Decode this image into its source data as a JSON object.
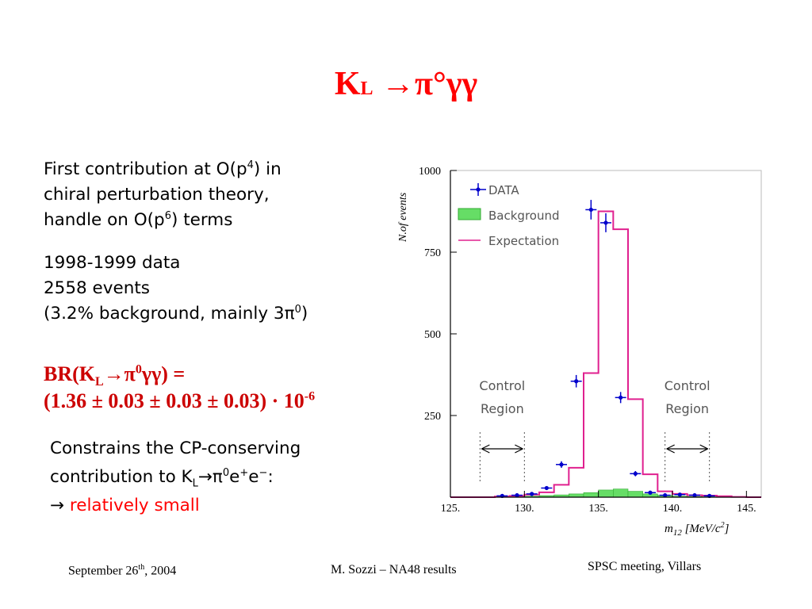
{
  "slide": {
    "title": {
      "main": "K",
      "sub": "L",
      "rest": " →π°γγ"
    },
    "bullets": {
      "b1": {
        "l1_pre": "First contribution at O(p",
        "l1_sup": "4",
        "l1_post": ") in",
        "l2": "chiral perturbation theory,",
        "l3_pre": "handle on O(p",
        "l3_sup": "6",
        "l3_post": ") terms"
      },
      "b2": {
        "l1": "1998-1999 data",
        "l2": "2558 events",
        "l3_pre": "(3.2% background, mainly 3π",
        "l3_sup": "0",
        "l3_post": ")"
      },
      "br": {
        "l1_a": "BR(K",
        "l1_sub": "L",
        "l1_b": "→π",
        "l1_sup": "0",
        "l1_c": "γγ) =",
        "l2_a": "(1.36 ± 0.03 ± 0.03 ± 0.03) · 10",
        "l2_sup": "-6"
      },
      "b3": {
        "l1": "Constrains the CP-conserving",
        "l2_a": "contribution to K",
        "l2_sub": "L",
        "l2_b": "→π",
        "l2_sup1": "0",
        "l2_c": "e",
        "l2_sup2": "+",
        "l2_d": "e",
        "l2_sup3": "−",
        "l2_e": ":",
        "l3_arrow": "→ ",
        "l3_red": "relatively small"
      }
    },
    "footer": {
      "date_a": "September 26",
      "date_sup": "th",
      "date_b": ", 2004",
      "author": "M. Sozzi – NA48 results",
      "meeting": "SPSC meeting, Villars"
    },
    "colors": {
      "title": "#ff0000",
      "br": "#cc0000",
      "data": "#0000cc",
      "expectation": "#e0208f",
      "background": "#66dd66"
    }
  },
  "chart_data": {
    "type": "histogram",
    "ylabel": "N.of events",
    "xlabel": "m",
    "xlabel_sub": "12",
    "xlabel_unit": "[MeV/c",
    "xlabel_unit_sup": "2",
    "xlabel_unit_end": "]",
    "xlim": [
      125,
      146
    ],
    "ylim": [
      0,
      1000
    ],
    "xticks": [
      125,
      130,
      135,
      140,
      145
    ],
    "xtick_labels": [
      "125.",
      "130.",
      "135.",
      "140.",
      "145."
    ],
    "yticks": [
      250,
      500,
      750,
      1000
    ],
    "ytick_labels": [
      "250",
      "500",
      "750",
      "1000"
    ],
    "legend": [
      "DATA",
      "Background",
      "Expectation"
    ],
    "control_region_label": [
      "Control",
      "Region"
    ],
    "control_regions": [
      [
        127,
        130
      ],
      [
        139.5,
        142.5
      ]
    ],
    "bin_edges": [
      125,
      126,
      127,
      128,
      129,
      130,
      131,
      132,
      133,
      134,
      135,
      136,
      137,
      138,
      139,
      140,
      141,
      142,
      143,
      144,
      145,
      146
    ],
    "expectation": [
      0,
      0,
      0,
      2,
      4,
      8,
      15,
      38,
      90,
      380,
      875,
      820,
      300,
      70,
      18,
      10,
      6,
      5,
      3,
      1,
      0
    ],
    "background": [
      0,
      0,
      0,
      1,
      2,
      3,
      5,
      7,
      10,
      14,
      22,
      25,
      18,
      10,
      6,
      3,
      2,
      1,
      1,
      0,
      0
    ],
    "data": {
      "x": [
        128.5,
        129.5,
        130.5,
        131.5,
        132.5,
        133.5,
        134.5,
        135.5,
        136.5,
        137.5,
        138.5,
        139.5,
        140.5,
        141.5,
        142.5
      ],
      "y": [
        4,
        6,
        10,
        28,
        100,
        355,
        880,
        840,
        305,
        72,
        14,
        6,
        8,
        6,
        4
      ],
      "err": [
        2,
        2,
        3,
        5,
        10,
        19,
        30,
        29,
        17,
        8,
        4,
        2,
        3,
        2,
        2
      ]
    }
  }
}
